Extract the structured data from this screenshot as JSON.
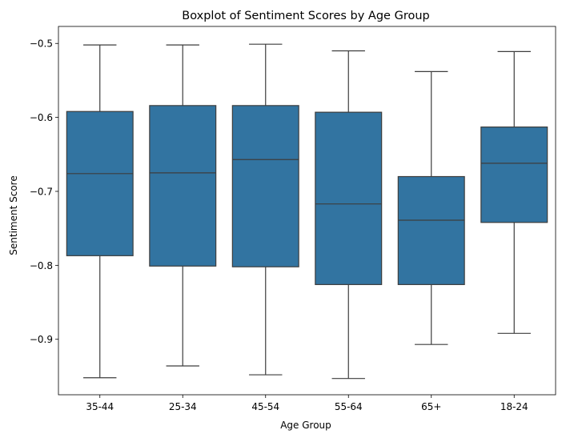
{
  "chart_data": {
    "type": "boxplot",
    "title": "Boxplot of Sentiment Scores by Age Group",
    "xlabel": "Age Group",
    "ylabel": "Sentiment Score",
    "ylim": [
      -0.975,
      -0.477
    ],
    "yticks": [
      -0.9,
      -0.8,
      -0.7,
      -0.6,
      -0.5
    ],
    "ytick_labels": [
      "−0.9",
      "−0.8",
      "−0.7",
      "−0.6",
      "−0.5"
    ],
    "grid": false,
    "box_color": "#3274a1",
    "line_color": "#3d3d3d",
    "categories": [
      "35-44",
      "25-34",
      "45-54",
      "55-64",
      "65+",
      "18-24"
    ],
    "boxes": [
      {
        "label": "35-44",
        "whisker_low": -0.952,
        "q1": -0.787,
        "median": -0.676,
        "q3": -0.592,
        "whisker_high": -0.502
      },
      {
        "label": "25-34",
        "whisker_low": -0.936,
        "q1": -0.801,
        "median": -0.675,
        "q3": -0.584,
        "whisker_high": -0.502
      },
      {
        "label": "45-54",
        "whisker_low": -0.948,
        "q1": -0.802,
        "median": -0.657,
        "q3": -0.584,
        "whisker_high": -0.501
      },
      {
        "label": "55-64",
        "whisker_low": -0.953,
        "q1": -0.826,
        "median": -0.717,
        "q3": -0.593,
        "whisker_high": -0.51
      },
      {
        "label": "65+",
        "whisker_low": -0.907,
        "q1": -0.826,
        "median": -0.739,
        "q3": -0.68,
        "whisker_high": -0.538
      },
      {
        "label": "18-24",
        "whisker_low": -0.892,
        "q1": -0.742,
        "median": -0.662,
        "q3": -0.613,
        "whisker_high": -0.511
      }
    ]
  }
}
